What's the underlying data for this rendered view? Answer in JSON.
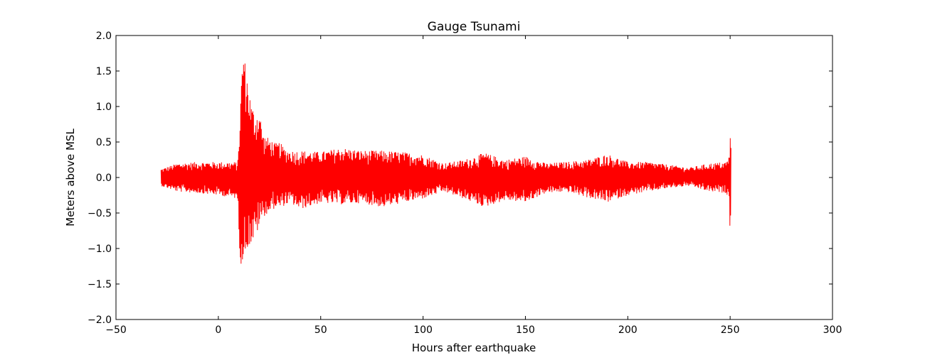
{
  "chart_data": {
    "type": "line",
    "title": "Gauge Tsunami",
    "xlabel": "Hours after earthquake",
    "ylabel": "Meters above MSL",
    "xlim": [
      -50,
      300
    ],
    "ylim": [
      -2.0,
      2.0
    ],
    "xticks": [
      -50,
      0,
      50,
      100,
      150,
      200,
      250,
      300
    ],
    "xtick_labels": [
      "−50",
      "0",
      "50",
      "100",
      "150",
      "200",
      "250",
      "300"
    ],
    "yticks": [
      -2.0,
      -1.5,
      -1.0,
      -0.5,
      0.0,
      0.5,
      1.0,
      1.5,
      2.0
    ],
    "ytick_labels": [
      "−2.0",
      "−1.5",
      "−1.0",
      "−0.5",
      "0.0",
      "0.5",
      "1.0",
      "1.5",
      "2.0"
    ],
    "grid": false,
    "series": [
      {
        "color": "#ff0000",
        "envelope": {
          "x": [
            -28,
            -20,
            -10,
            0,
            9.5,
            10,
            11,
            12,
            13,
            14,
            16,
            18,
            20,
            22,
            25,
            28,
            30,
            32,
            35,
            40,
            50,
            60,
            70,
            80,
            90,
            100,
            110,
            120,
            130,
            140,
            150,
            160,
            170,
            180,
            190,
            200,
            210,
            220,
            230,
            240,
            248,
            249.5,
            250,
            250.5
          ],
          "upper": [
            0.12,
            0.2,
            0.22,
            0.22,
            0.22,
            0.6,
            1.2,
            1.88,
            1.65,
            1.45,
            1.05,
            0.9,
            0.95,
            0.6,
            0.55,
            0.48,
            0.5,
            0.42,
            0.38,
            0.38,
            0.36,
            0.42,
            0.38,
            0.38,
            0.36,
            0.32,
            0.2,
            0.25,
            0.35,
            0.25,
            0.3,
            0.2,
            0.22,
            0.25,
            0.33,
            0.22,
            0.22,
            0.18,
            0.14,
            0.2,
            0.22,
            0.3,
            0.66,
            0.55
          ],
          "lower": [
            -0.12,
            -0.2,
            -0.22,
            -0.25,
            -0.3,
            -0.9,
            -1.22,
            -1.2,
            -1.15,
            -1.0,
            -0.95,
            -0.85,
            -0.7,
            -0.55,
            -0.5,
            -0.42,
            -0.45,
            -0.4,
            -0.36,
            -0.45,
            -0.36,
            -0.38,
            -0.36,
            -0.42,
            -0.36,
            -0.3,
            -0.2,
            -0.3,
            -0.42,
            -0.32,
            -0.35,
            -0.22,
            -0.2,
            -0.28,
            -0.35,
            -0.25,
            -0.2,
            -0.15,
            -0.12,
            -0.2,
            -0.22,
            -0.3,
            -0.8,
            -0.5
          ]
        }
      }
    ]
  }
}
